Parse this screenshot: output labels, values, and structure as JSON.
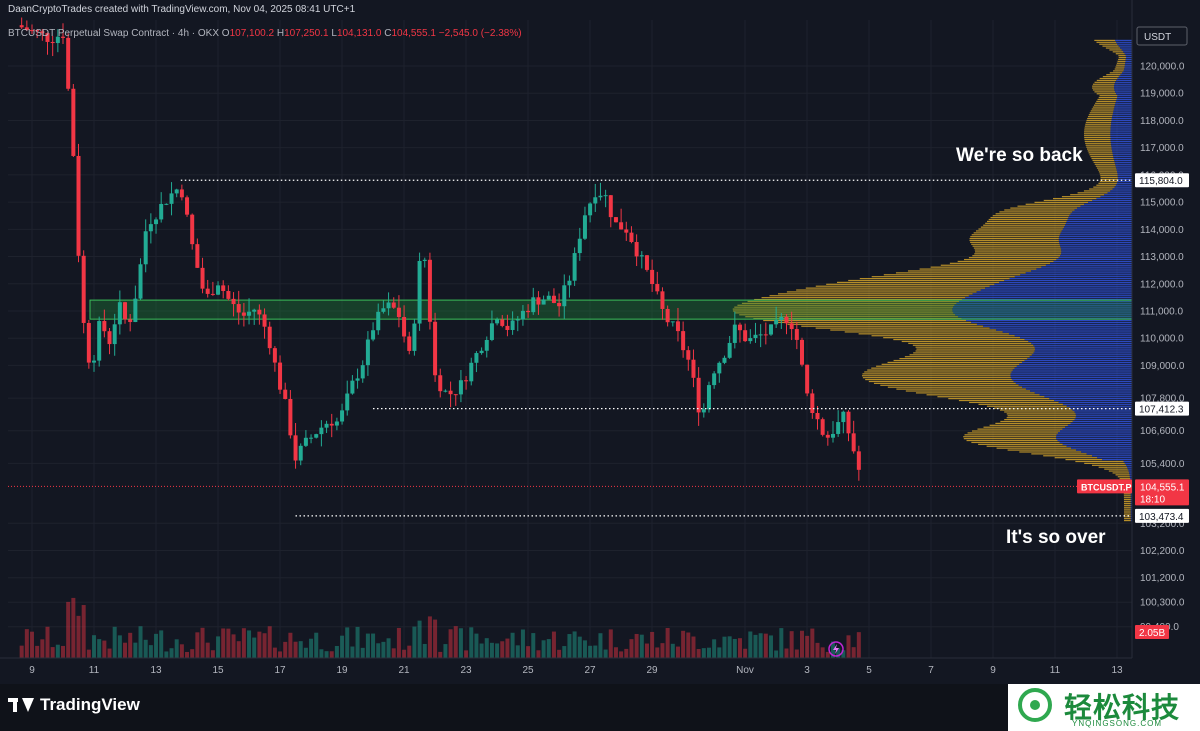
{
  "header": {
    "credit": "DaanCryptoTrades created with TradingView.com, Nov 04, 2025 08:41 UTC+1",
    "symbol_desc": "BTCUSDT Perpetual Swap Contract · 4h · OKX",
    "ohlc": {
      "o_label": "O",
      "o": "107,100.2",
      "h_label": "H",
      "h": "107,250.1",
      "l_label": "L",
      "l": "104,131.0",
      "c_label": "C",
      "c": "104,555.1",
      "chg": "−2,545.0 (−2.38%)"
    }
  },
  "annotations": {
    "top": "We're so back",
    "bottom": "It's so over"
  },
  "brand": {
    "name": "TradingView"
  },
  "watermark": {
    "cn": "轻松科技",
    "url": "YNQINGSONG.COM"
  },
  "colors": {
    "up": "#22ab94",
    "down": "#f23645",
    "profile_up": "#d4a32a",
    "profile_down": "#2f4fd0",
    "zone": "#1f8a3a",
    "bg": "#131722"
  },
  "chart_data": {
    "type": "candlestick",
    "currency_label": "USDT",
    "ylim": [
      99000,
      121000
    ],
    "y_ticks": [
      120000,
      119000,
      118000,
      117000,
      116000,
      115000,
      114000,
      113000,
      112000,
      111000,
      110000,
      109000,
      107800,
      106600,
      105400,
      103200,
      102200,
      101200,
      100300,
      99400
    ],
    "y_tick_labels": [
      "120,000.0",
      "119,000.0",
      "118,000.0",
      "117,000.0",
      "116,000.0",
      "115,000.0",
      "114,000.0",
      "113,000.0",
      "112,000.0",
      "111,000.0",
      "110,000.0",
      "109,000.0",
      "107,800.0",
      "106,600.0",
      "105,400.0",
      "103,200.0",
      "102,200.0",
      "101,200.0",
      "100,300.0",
      "99,400.0"
    ],
    "x_ticks": [
      {
        "day": 9,
        "label": "9"
      },
      {
        "day": 11,
        "label": "11"
      },
      {
        "day": 13,
        "label": "13"
      },
      {
        "day": 15,
        "label": "15"
      },
      {
        "day": 17,
        "label": "17"
      },
      {
        "day": 19,
        "label": "19"
      },
      {
        "day": 21,
        "label": "21"
      },
      {
        "day": 23,
        "label": "23"
      },
      {
        "day": 25,
        "label": "25"
      },
      {
        "day": 27,
        "label": "27"
      },
      {
        "day": 29,
        "label": "29"
      },
      {
        "day": 32,
        "label": "Nov"
      },
      {
        "day": 34,
        "label": "3"
      },
      {
        "day": 36,
        "label": "5"
      },
      {
        "day": 38,
        "label": "7"
      },
      {
        "day": 40,
        "label": "9"
      },
      {
        "day": 42,
        "label": "11"
      },
      {
        "day": 44,
        "label": "13"
      }
    ],
    "levels": [
      {
        "price": 115804.0,
        "label": "115,804.0",
        "from_day": 13.8
      },
      {
        "price": 107412.3,
        "label": "107,412.3",
        "from_day": 20.0
      },
      {
        "price": 103473.4,
        "label": "103,473.4",
        "from_day": 17.5
      }
    ],
    "last_price": {
      "symbol": "BTCUSDT.P",
      "price": 104555.1,
      "label": "104,555.1",
      "countdown": "18:10"
    },
    "volume_label": "2.05B",
    "zone": {
      "low": 110700,
      "high": 111400
    },
    "keypoints": [
      [
        8.5,
        121500
      ],
      [
        9.6,
        121000
      ],
      [
        10.0,
        121200
      ],
      [
        10.3,
        117500
      ],
      [
        10.6,
        111000
      ],
      [
        10.9,
        108800
      ],
      [
        11.2,
        110600
      ],
      [
        11.5,
        109900
      ],
      [
        11.8,
        111200
      ],
      [
        12.1,
        110400
      ],
      [
        12.4,
        111900
      ],
      [
        12.7,
        114200
      ],
      [
        13.0,
        114600
      ],
      [
        13.4,
        115200
      ],
      [
        13.8,
        115600
      ],
      [
        14.2,
        113200
      ],
      [
        14.6,
        111400
      ],
      [
        15.0,
        112100
      ],
      [
        15.4,
        111300
      ],
      [
        15.8,
        110800
      ],
      [
        16.2,
        111100
      ],
      [
        16.6,
        110200
      ],
      [
        16.9,
        108700
      ],
      [
        17.2,
        107400
      ],
      [
        17.5,
        105600
      ],
      [
        17.8,
        106100
      ],
      [
        18.2,
        106600
      ],
      [
        18.6,
        107000
      ],
      [
        18.9,
        106900
      ],
      [
        19.3,
        108200
      ],
      [
        19.7,
        109200
      ],
      [
        20.0,
        110400
      ],
      [
        20.4,
        111200
      ],
      [
        20.8,
        111000
      ],
      [
        21.2,
        109200
      ],
      [
        21.6,
        113800
      ],
      [
        22.0,
        108600
      ],
      [
        22.4,
        107900
      ],
      [
        22.8,
        108200
      ],
      [
        23.2,
        109100
      ],
      [
        23.6,
        110000
      ],
      [
        24.0,
        110900
      ],
      [
        24.4,
        110300
      ],
      [
        24.8,
        110900
      ],
      [
        25.2,
        111400
      ],
      [
        25.6,
        111500
      ],
      [
        26.0,
        111200
      ],
      [
        26.4,
        112400
      ],
      [
        26.8,
        114500
      ],
      [
        27.2,
        115500
      ],
      [
        27.5,
        115200
      ],
      [
        27.8,
        114200
      ],
      [
        28.2,
        114000
      ],
      [
        28.6,
        113000
      ],
      [
        29.0,
        112000
      ],
      [
        29.4,
        110800
      ],
      [
        29.8,
        110200
      ],
      [
        30.2,
        109100
      ],
      [
        30.6,
        107000
      ],
      [
        30.9,
        108700
      ],
      [
        31.3,
        109400
      ],
      [
        31.7,
        110400
      ],
      [
        32.1,
        109900
      ],
      [
        32.5,
        110100
      ],
      [
        32.9,
        110300
      ],
      [
        33.3,
        110800
      ],
      [
        33.6,
        110400
      ],
      [
        34.0,
        107900
      ],
      [
        34.3,
        107100
      ],
      [
        34.6,
        106300
      ],
      [
        34.9,
        106700
      ],
      [
        35.2,
        107100
      ],
      [
        35.6,
        105500
      ],
      [
        35.8,
        104555
      ]
    ]
  }
}
